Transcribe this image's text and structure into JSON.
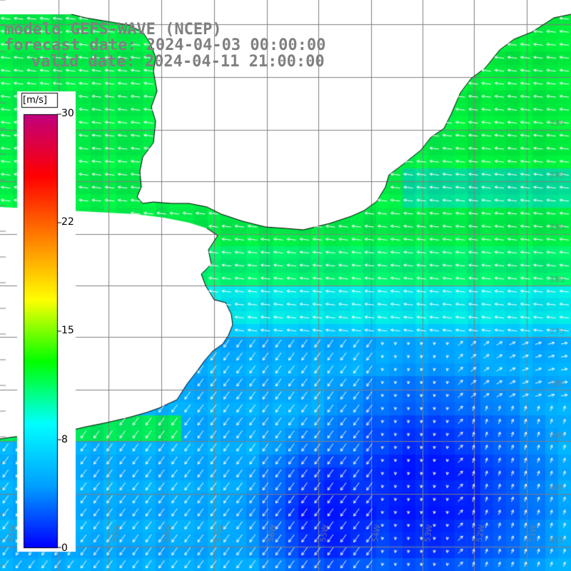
{
  "header": {
    "line1": "modelo GEFS-WAVE (NCEP)",
    "line2": "forecast date: 2024-04-03 00:00:00",
    "line3": "valid date: 2024-04-11 21:00:00"
  },
  "colorbar": {
    "unit": "[m/s]",
    "ticks": [
      "30",
      "22",
      "15",
      "8",
      "0"
    ],
    "colors": [
      "#0000ff",
      "#00a0ff",
      "#00ffff",
      "#00ff00",
      "#ffff00",
      "#ff8000",
      "#ff0000",
      "#c00080"
    ]
  },
  "grid_labels": {
    "lat": [
      "33S",
      "34S",
      "35S",
      "36S",
      "37S",
      "38S",
      "39S",
      "40S",
      "41S"
    ],
    "lon": [
      "61W",
      "60W",
      "59W",
      "58W",
      "57W",
      "56W",
      "55W",
      "54W",
      "53W",
      "52W",
      "51W"
    ]
  },
  "map": {
    "land_color": "#ffffff",
    "grid_color": "#808080",
    "coast_color": "#000000",
    "arrow_color": "#ffffff"
  }
}
